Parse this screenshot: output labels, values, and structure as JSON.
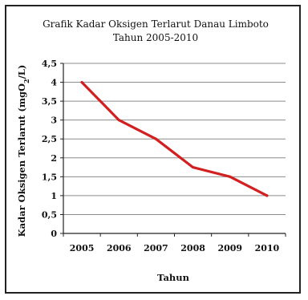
{
  "chart_data": {
    "type": "line",
    "title_line1": "Grafik Kadar Oksigen Terlarut Danau  Limboto",
    "title_line2": "Tahun 2005-2010",
    "xlabel": "Tahun",
    "ylabel": "Kadar Oksigen Terlarut (mgO2/L)",
    "x": [
      "2005",
      "2006",
      "2007",
      "2008",
      "2009",
      "2010"
    ],
    "series": [
      {
        "values": [
          4.0,
          3.0,
          2.5,
          1.75,
          1.5,
          1.0
        ],
        "color": "#d21f1f"
      }
    ],
    "yticks": [
      "0",
      "0,5",
      "1",
      "1,5",
      "2",
      "2,5",
      "3",
      "3,5",
      "4",
      "4,5"
    ],
    "ylim": [
      0,
      4.5
    ],
    "grid": true,
    "legend": "none"
  }
}
